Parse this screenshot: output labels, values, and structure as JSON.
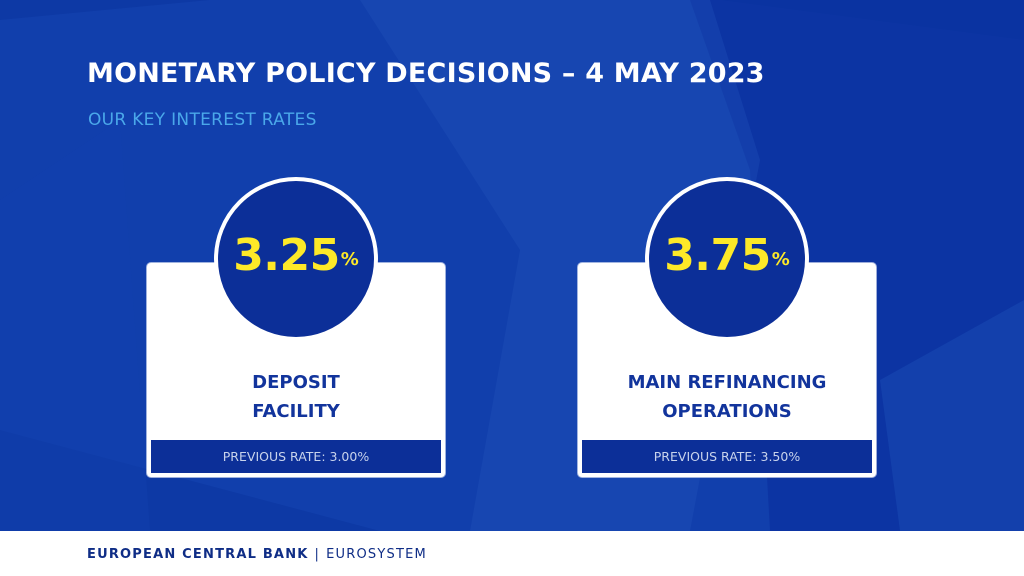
{
  "header": {
    "title": "MONETARY POLICY DECISIONS – 4 MAY 2023",
    "subtitle": "OUR KEY INTEREST RATES"
  },
  "rates": [
    {
      "value": "3.25",
      "unit": "%",
      "name_line1": "DEPOSIT",
      "name_line2": "FACILITY",
      "previous": "PREVIOUS RATE: 3.00%"
    },
    {
      "value": "3.75",
      "unit": "%",
      "name_line1": "MAIN REFINANCING",
      "name_line2": "OPERATIONS",
      "previous": "PREVIOUS RATE: 3.50%"
    }
  ],
  "footer": {
    "bank_name": "EUROPEAN CENTRAL BANK",
    "separator": "|",
    "system_name": "EUROSYSTEM"
  },
  "colors": {
    "background_blue": "#0d39a5",
    "circle_blue": "#0c2f98",
    "rate_yellow": "#fde928",
    "subtitle_blue": "#4aa8ea",
    "label_blue": "#12349c",
    "footer_text": "#0f2d86"
  }
}
